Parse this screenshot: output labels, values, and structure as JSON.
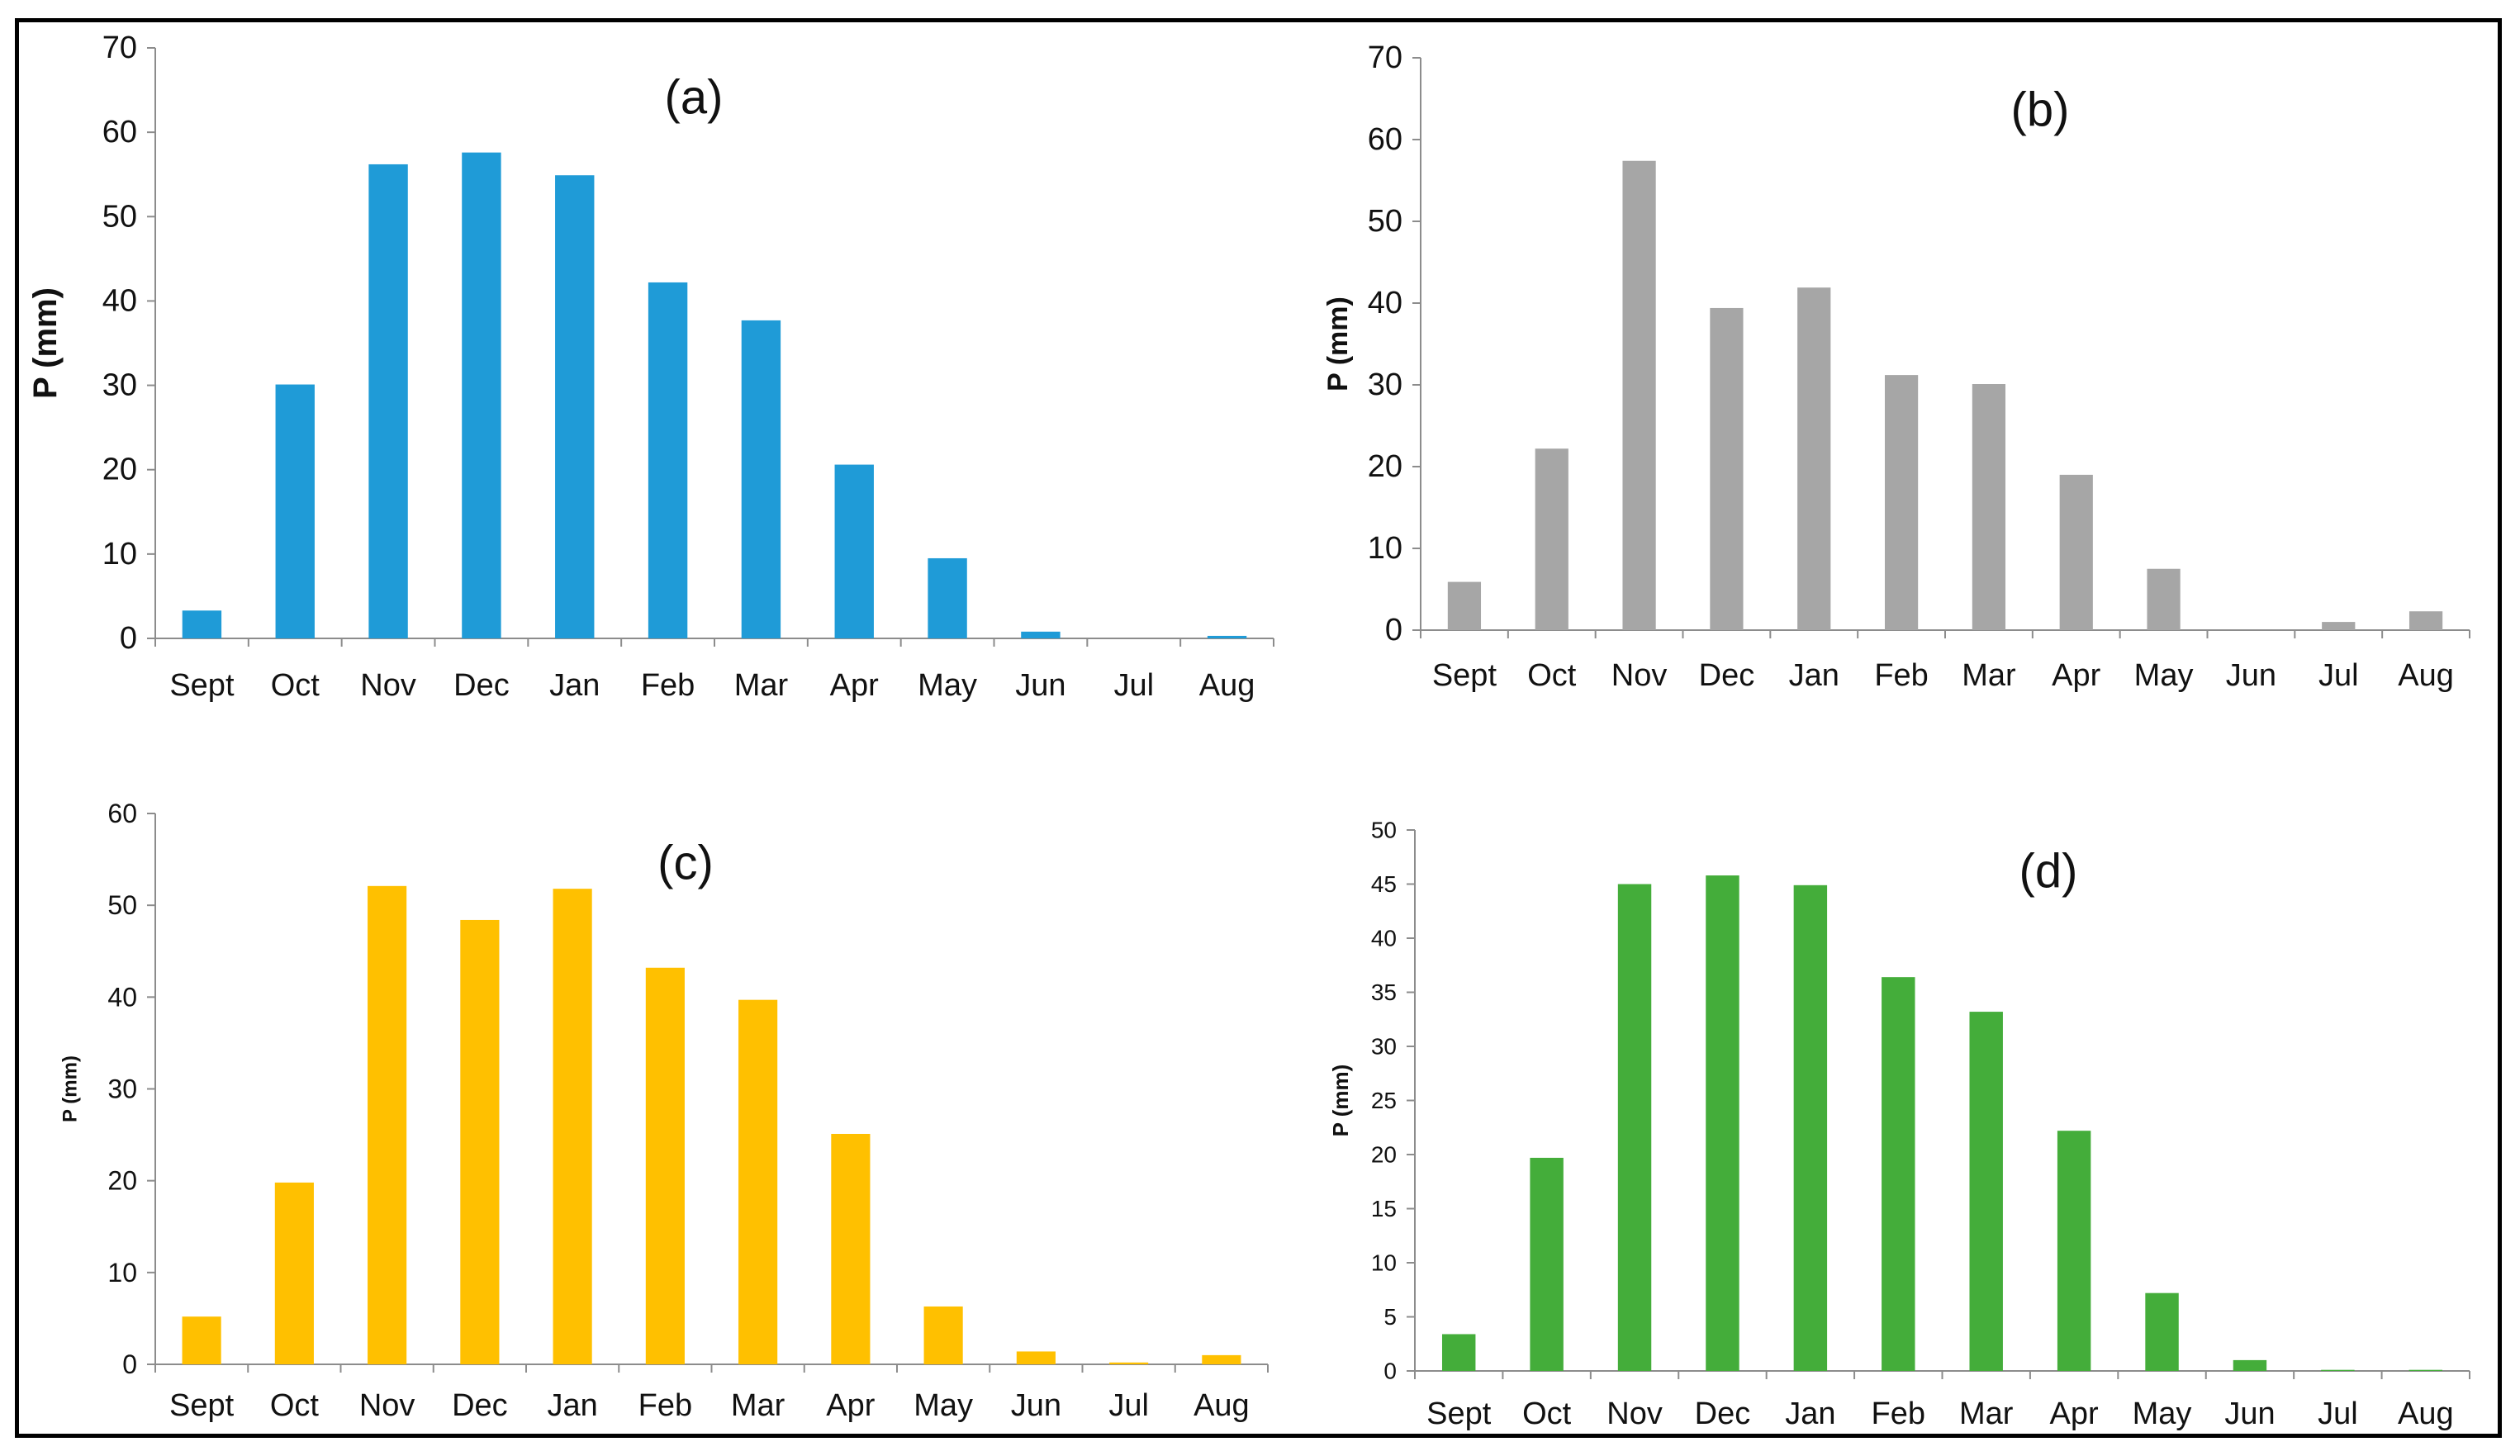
{
  "figure": {
    "panel_order": [
      "a",
      "b",
      "c",
      "d"
    ]
  },
  "chart_data": [
    {
      "id": "a",
      "type": "bar",
      "panel_label": "(a)",
      "categories": [
        "Sept",
        "Oct",
        "Nov",
        "Dec",
        "Jan",
        "Feb",
        "Mar",
        "Apr",
        "May",
        "Jun",
        "Jul",
        "Aug"
      ],
      "values": [
        3.3,
        30.1,
        56.2,
        57.6,
        54.9,
        42.2,
        37.7,
        20.6,
        9.5,
        0.8,
        0,
        0.3
      ],
      "ylabel": "P (mm)",
      "ylim": [
        0,
        70
      ],
      "yticks": [
        0,
        10,
        20,
        30,
        40,
        50,
        60,
        70
      ],
      "color": "#1f9bd7",
      "grid": false
    },
    {
      "id": "b",
      "type": "bar",
      "panel_label": "(b)",
      "categories": [
        "Sept",
        "Oct",
        "Nov",
        "Dec",
        "Jan",
        "Feb",
        "Mar",
        "Apr",
        "May",
        "Jun",
        "Jul",
        "Aug"
      ],
      "values": [
        5.9,
        22.2,
        57.4,
        39.4,
        41.9,
        31.2,
        30.1,
        19.0,
        7.5,
        0,
        1.0,
        2.3
      ],
      "ylabel": "P (mm)",
      "ylim": [
        0,
        70
      ],
      "yticks": [
        0,
        10,
        20,
        30,
        40,
        50,
        60,
        70
      ],
      "color": "#a6a6a6",
      "grid": false
    },
    {
      "id": "c",
      "type": "bar",
      "panel_label": "(c)",
      "categories": [
        "Sept",
        "Oct",
        "Nov",
        "Dec",
        "Jan",
        "Feb",
        "Mar",
        "Apr",
        "May",
        "Jun",
        "Jul",
        "Aug"
      ],
      "values": [
        5.2,
        19.8,
        52.1,
        48.4,
        51.8,
        43.2,
        39.7,
        25.1,
        6.3,
        1.4,
        0.2,
        1.0
      ],
      "ylabel": "P (mm)",
      "ylim": [
        0,
        60
      ],
      "yticks": [
        0,
        10,
        20,
        30,
        40,
        50,
        60
      ],
      "color": "#ffc000",
      "grid": false
    },
    {
      "id": "d",
      "type": "bar",
      "panel_label": "(d)",
      "categories": [
        "Sept",
        "Oct",
        "Nov",
        "Dec",
        "Jan",
        "Feb",
        "Mar",
        "Apr",
        "May",
        "Jun",
        "Jul",
        "Aug"
      ],
      "values": [
        3.4,
        19.7,
        45.0,
        45.8,
        44.9,
        36.4,
        33.2,
        22.2,
        7.2,
        1.0,
        0.1,
        0.1
      ],
      "ylabel": "P (mm)",
      "ylim": [
        0,
        50
      ],
      "yticks": [
        0,
        5,
        10,
        15,
        20,
        25,
        30,
        35,
        40,
        45,
        50
      ],
      "color": "#44ad3a",
      "grid": false
    }
  ]
}
